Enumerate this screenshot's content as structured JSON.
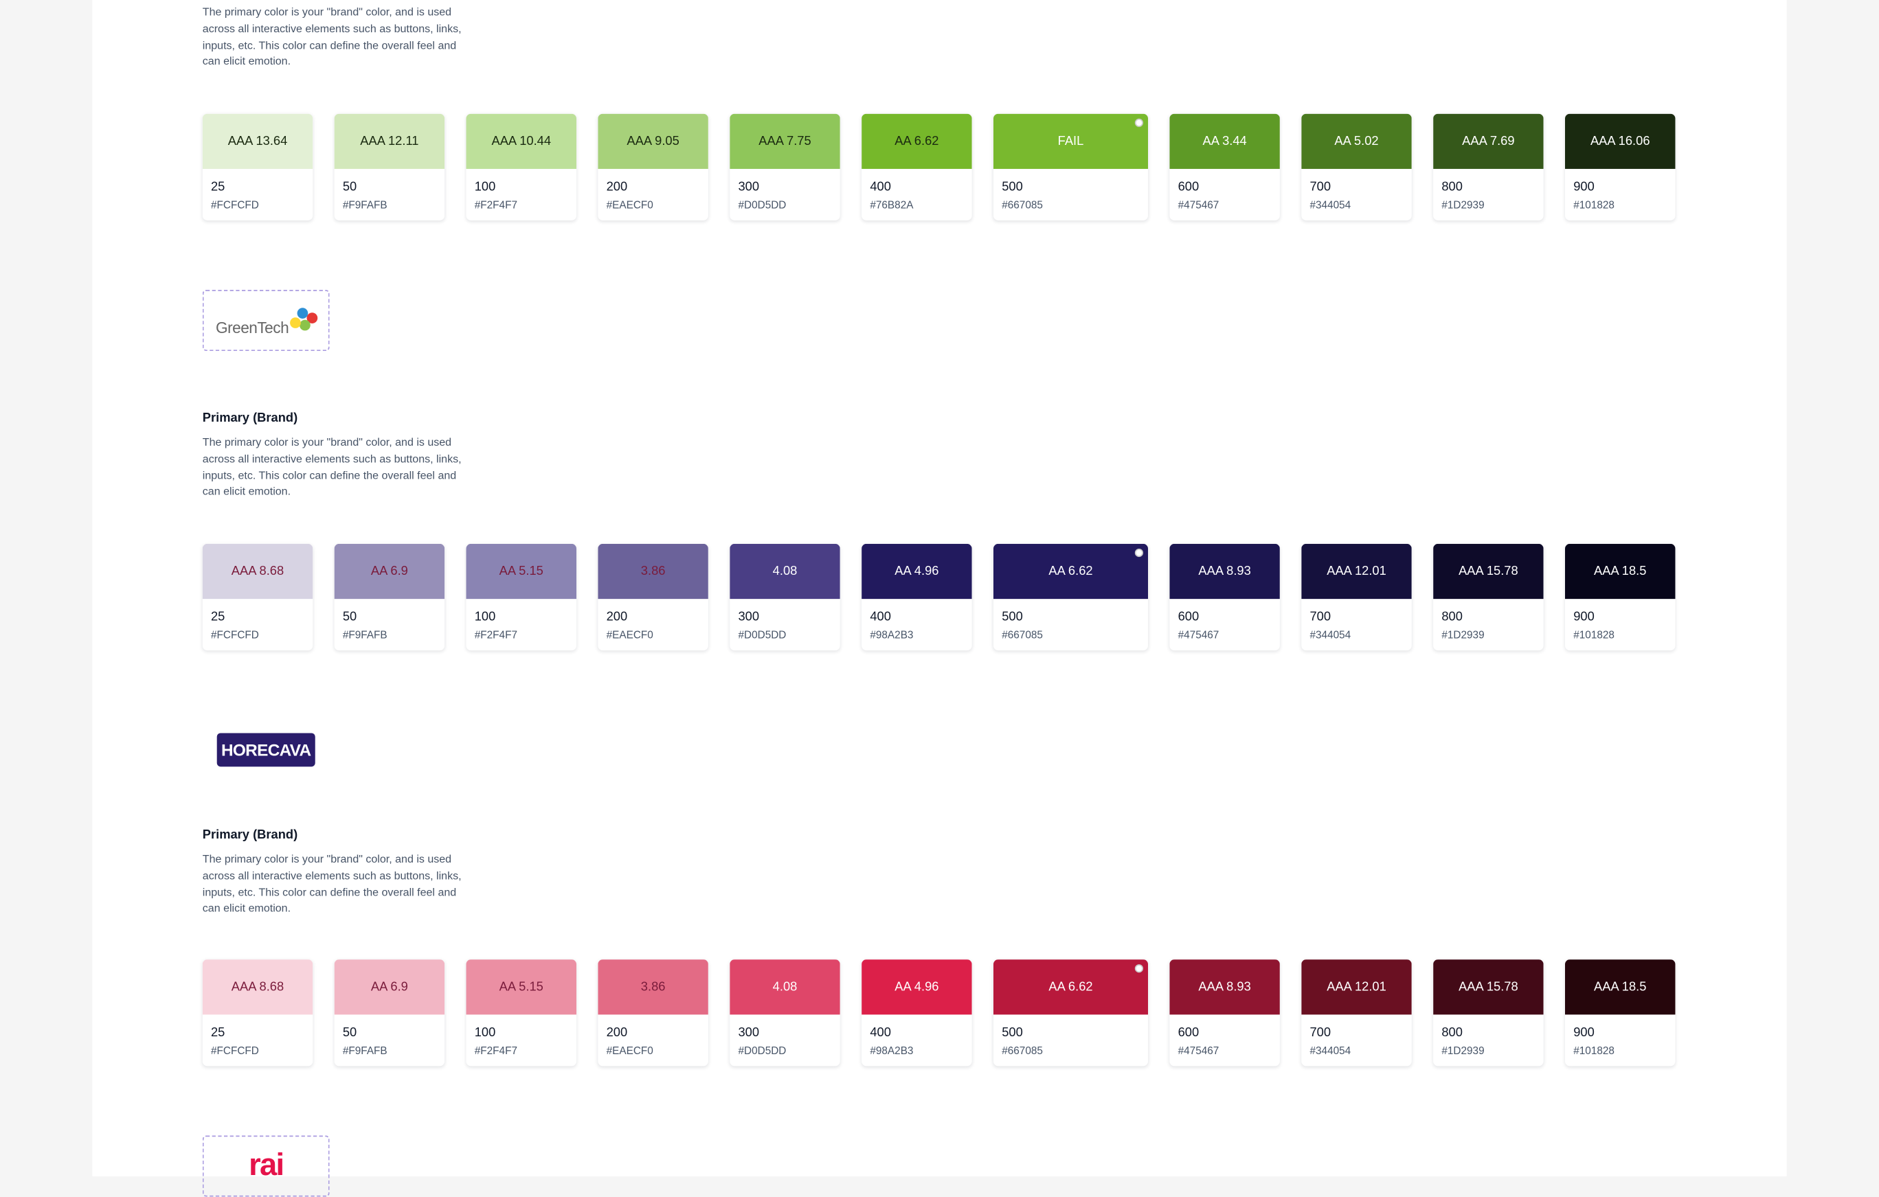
{
  "sections": [
    {
      "description": "The primary color is your \"brand\" color, and is used across all interactive elements such as buttons, links, inputs, etc. This color can define the overall feel and can elicit emotion.",
      "swatches": [
        {
          "contrast": "AAA 13.64",
          "shade": "25",
          "hex": "#FCFCFD",
          "color": "#e3f0d5",
          "text_color": "#1a2a10"
        },
        {
          "contrast": "AAA 12.11",
          "shade": "50",
          "hex": "#F9FAFB",
          "color": "#d3e8bb",
          "text_color": "#1a2a10"
        },
        {
          "contrast": "AAA 10.44",
          "shade": "100",
          "hex": "#F2F4F7",
          "color": "#bde09a",
          "text_color": "#1a2a10"
        },
        {
          "contrast": "AAA 9.05",
          "shade": "200",
          "hex": "#EAECF0",
          "color": "#a7d17a",
          "text_color": "#1a2a10"
        },
        {
          "contrast": "AAA 7.75",
          "shade": "300",
          "hex": "#D0D5DD",
          "color": "#8fc65a",
          "text_color": "#1a2a10"
        },
        {
          "contrast": "AA 6.62",
          "shade": "400",
          "hex": "#76B82A",
          "color": "#76b82a",
          "text_color": "#1a2a10"
        },
        {
          "contrast": "FAIL",
          "shade": "500",
          "hex": "#667085",
          "color": "#79b92e",
          "text_color": "#ffffff"
        },
        {
          "contrast": "AA 3.44",
          "shade": "600",
          "hex": "#475467",
          "color": "#5e9a26",
          "text_color": "#ffffff"
        },
        {
          "contrast": "AA 5.02",
          "shade": "700",
          "hex": "#344054",
          "color": "#4a7a20",
          "text_color": "#ffffff"
        },
        {
          "contrast": "AAA 7.69",
          "shade": "800",
          "hex": "#1D2939",
          "color": "#35581a",
          "text_color": "#ffffff"
        },
        {
          "contrast": "AAA 16.06",
          "shade": "900",
          "hex": "#101828",
          "color": "#1a2a10",
          "text_color": "#ffffff"
        }
      ]
    },
    {
      "logo": "GreenTech",
      "title": "Primary (Brand)",
      "description": "The primary color is your \"brand\" color, and is used across all interactive elements such as buttons, links, inputs, etc. This color can define the overall feel and can elicit emotion.",
      "swatches": [
        {
          "contrast": "AAA 8.68",
          "shade": "25",
          "hex": "#FCFCFD",
          "color": "#d7d3e3",
          "text_color": "#7a1b3b"
        },
        {
          "contrast": "AA 6.9",
          "shade": "50",
          "hex": "#F9FAFB",
          "color": "#968fb8",
          "text_color": "#7a1b3b"
        },
        {
          "contrast": "AA 5.15",
          "shade": "100",
          "hex": "#F2F4F7",
          "color": "#8a84b3",
          "text_color": "#7a1b3b"
        },
        {
          "contrast": "3.86",
          "shade": "200",
          "hex": "#EAECF0",
          "color": "#6b629a",
          "text_color": "#7a1b3b"
        },
        {
          "contrast": "4.08",
          "shade": "300",
          "hex": "#D0D5DD",
          "color": "#4a3e85",
          "text_color": "#ffffff"
        },
        {
          "contrast": "AA 4.96",
          "shade": "400",
          "hex": "#98A2B3",
          "color": "#221a5e",
          "text_color": "#ffffff"
        },
        {
          "contrast": "AA 6.62",
          "shade": "500",
          "hex": "#667085",
          "color": "#221a5e",
          "text_color": "#ffffff"
        },
        {
          "contrast": "AAA 8.93",
          "shade": "600",
          "hex": "#475467",
          "color": "#1c1650",
          "text_color": "#ffffff"
        },
        {
          "contrast": "AAA 12.01",
          "shade": "700",
          "hex": "#344054",
          "color": "#15113d",
          "text_color": "#ffffff"
        },
        {
          "contrast": "AAA 15.78",
          "shade": "800",
          "hex": "#1D2939",
          "color": "#0e0b29",
          "text_color": "#ffffff"
        },
        {
          "contrast": "AAA 18.5",
          "shade": "900",
          "hex": "#101828",
          "color": "#07061a",
          "text_color": "#ffffff"
        }
      ]
    },
    {
      "logo": "HORECAVA",
      "title": "Primary (Brand)",
      "description": "The primary color is your \"brand\" color, and is used across all interactive elements such as buttons, links, inputs, etc. This color can define the overall feel and can elicit emotion.",
      "swatches": [
        {
          "contrast": "AAA 8.68",
          "shade": "25",
          "hex": "#FCFCFD",
          "color": "#f8d3dc",
          "text_color": "#7a1b3b"
        },
        {
          "contrast": "AA 6.9",
          "shade": "50",
          "hex": "#F9FAFB",
          "color": "#f2b6c4",
          "text_color": "#7a1b3b"
        },
        {
          "contrast": "AA 5.15",
          "shade": "100",
          "hex": "#F2F4F7",
          "color": "#eb8fa3",
          "text_color": "#7a1b3b"
        },
        {
          "contrast": "3.86",
          "shade": "200",
          "hex": "#EAECF0",
          "color": "#e36b85",
          "text_color": "#7a1b3b"
        },
        {
          "contrast": "4.08",
          "shade": "300",
          "hex": "#D0D5DD",
          "color": "#df4669",
          "text_color": "#ffffff"
        },
        {
          "contrast": "AA 4.96",
          "shade": "400",
          "hex": "#98A2B3",
          "color": "#dc2049",
          "text_color": "#ffffff"
        },
        {
          "contrast": "AA 6.62",
          "shade": "500",
          "hex": "#667085",
          "color": "#b8193c",
          "text_color": "#ffffff"
        },
        {
          "contrast": "AAA 8.93",
          "shade": "600",
          "hex": "#475467",
          "color": "#8f1530",
          "text_color": "#ffffff"
        },
        {
          "contrast": "AAA 12.01",
          "shade": "700",
          "hex": "#344054",
          "color": "#6a1022",
          "text_color": "#ffffff"
        },
        {
          "contrast": "AAA 15.78",
          "shade": "800",
          "hex": "#1D2939",
          "color": "#430a17",
          "text_color": "#ffffff"
        },
        {
          "contrast": "AAA 18.5",
          "shade": "900",
          "hex": "#101828",
          "color": "#26060c",
          "text_color": "#ffffff"
        }
      ]
    },
    {
      "logo": "rai"
    }
  ]
}
